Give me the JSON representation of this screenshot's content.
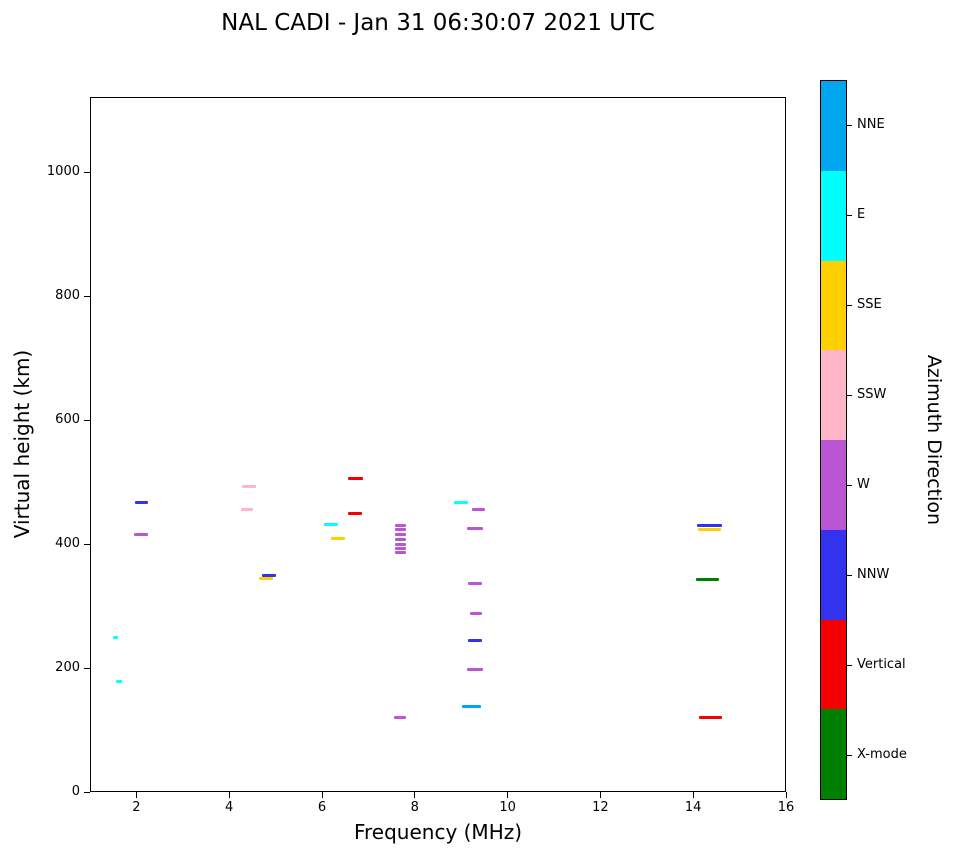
{
  "chart_data": {
    "type": "scatter",
    "title": "NAL CADI - Jan 31 06:30:07 2021 UTC",
    "xlabel": "Frequency (MHz)",
    "ylabel": "Virtual height (km)",
    "xlim": [
      1,
      16
    ],
    "ylim": [
      0,
      1121
    ],
    "xticks": [
      2,
      4,
      6,
      8,
      10,
      12,
      14,
      16
    ],
    "yticks": [
      0,
      200,
      400,
      600,
      800,
      1000
    ],
    "grid": false,
    "colorbar": {
      "label": "Azimuth Direction",
      "categories": [
        {
          "label": "NNE",
          "color": "#00A6ED"
        },
        {
          "label": "E",
          "color": "#00FFFF"
        },
        {
          "label": "SSE",
          "color": "#FFD000"
        },
        {
          "label": "SSW",
          "color": "#FFB6C9"
        },
        {
          "label": "W",
          "color": "#BA55D3"
        },
        {
          "label": "NNW",
          "color": "#3333EE"
        },
        {
          "label": "Vertical",
          "color": "#F40000"
        },
        {
          "label": "X-mode",
          "color": "#008000"
        }
      ]
    },
    "points": [
      {
        "x": 1.55,
        "y": 250,
        "dir": "E",
        "w": 0.12
      },
      {
        "x": 1.62,
        "y": 178,
        "dir": "E",
        "w": 0.12
      },
      {
        "x": 2.1,
        "y": 467,
        "dir": "NNW",
        "w": 0.28
      },
      {
        "x": 2.1,
        "y": 416,
        "dir": "W",
        "w": 0.3
      },
      {
        "x": 4.42,
        "y": 492,
        "dir": "SSW",
        "w": 0.3
      },
      {
        "x": 4.38,
        "y": 456,
        "dir": "SSW",
        "w": 0.26
      },
      {
        "x": 4.85,
        "y": 350,
        "dir": "NNW",
        "w": 0.3
      },
      {
        "x": 4.8,
        "y": 344,
        "dir": "SSE",
        "w": 0.3
      },
      {
        "x": 6.2,
        "y": 431,
        "dir": "E",
        "w": 0.3
      },
      {
        "x": 6.35,
        "y": 409,
        "dir": "SSE",
        "w": 0.3
      },
      {
        "x": 6.72,
        "y": 505,
        "dir": "Vertical",
        "w": 0.34
      },
      {
        "x": 6.72,
        "y": 450,
        "dir": "Vertical",
        "w": 0.3
      },
      {
        "x": 7.7,
        "y": 430,
        "dir": "W",
        "w": 0.24
      },
      {
        "x": 7.7,
        "y": 423,
        "dir": "W",
        "w": 0.24
      },
      {
        "x": 7.7,
        "y": 416,
        "dir": "W",
        "w": 0.24
      },
      {
        "x": 7.7,
        "y": 408,
        "dir": "W",
        "w": 0.24
      },
      {
        "x": 7.7,
        "y": 400,
        "dir": "W",
        "w": 0.24
      },
      {
        "x": 7.7,
        "y": 393,
        "dir": "W",
        "w": 0.24
      },
      {
        "x": 7.7,
        "y": 386,
        "dir": "W",
        "w": 0.24
      },
      {
        "x": 7.68,
        "y": 120,
        "dir": "W",
        "w": 0.24
      },
      {
        "x": 9.0,
        "y": 467,
        "dir": "E",
        "w": 0.3
      },
      {
        "x": 9.38,
        "y": 455,
        "dir": "W",
        "w": 0.28
      },
      {
        "x": 9.3,
        "y": 425,
        "dir": "W",
        "w": 0.34
      },
      {
        "x": 9.3,
        "y": 337,
        "dir": "W",
        "w": 0.3
      },
      {
        "x": 9.32,
        "y": 288,
        "dir": "W",
        "w": 0.24
      },
      {
        "x": 9.3,
        "y": 245,
        "dir": "NNW",
        "w": 0.3
      },
      {
        "x": 9.3,
        "y": 197,
        "dir": "W",
        "w": 0.34
      },
      {
        "x": 9.22,
        "y": 138,
        "dir": "NNE",
        "w": 0.4
      },
      {
        "x": 14.35,
        "y": 430,
        "dir": "NNW",
        "w": 0.55
      },
      {
        "x": 14.35,
        "y": 424,
        "dir": "SSE",
        "w": 0.5
      },
      {
        "x": 14.3,
        "y": 343,
        "dir": "X-mode",
        "w": 0.5
      },
      {
        "x": 14.38,
        "y": 120,
        "dir": "Vertical",
        "w": 0.5
      }
    ]
  }
}
